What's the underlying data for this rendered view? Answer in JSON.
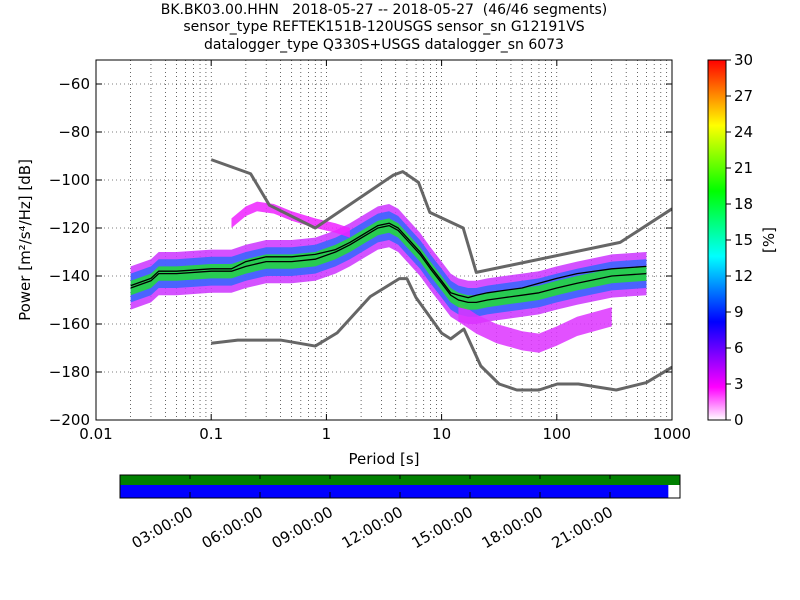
{
  "chart_data": [
    {
      "type": "heatmap",
      "title_lines": [
        "BK.BK03.00.HHN   2018-05-27 -- 2018-05-27  (46/46 segments)",
        "sensor_type REFTEK151B-120USGS sensor_sn G12191VS",
        "datalogger_type Q330S+USGS datalogger_sn 6073"
      ],
      "xlabel": "Period [s]",
      "ylabel": "Power [m²/s⁴/Hz] [dB]",
      "xscale": "log",
      "xlim": [
        0.01,
        1000
      ],
      "ylim": [
        -200,
        -50
      ],
      "xticks": [
        0.01,
        0.1,
        1,
        10,
        100,
        1000
      ],
      "xtick_labels": [
        "0.01",
        "0.1",
        "1",
        "10",
        "100",
        "1000"
      ],
      "yticks": [
        -200,
        -180,
        -160,
        -140,
        -120,
        -100,
        -80,
        -60
      ],
      "ytick_labels": [
        "−200",
        "−180",
        "−160",
        "−140",
        "−120",
        "−100",
        "−80",
        "−60"
      ],
      "grid": "dotted",
      "colorbar": {
        "label": "[%]",
        "range": [
          0,
          30
        ],
        "ticks": [
          0,
          3,
          6,
          9,
          12,
          15,
          18,
          21,
          24,
          27,
          30
        ],
        "colormap": [
          "#ffffff",
          "#ff00ff",
          "#8000ff",
          "#0000ff",
          "#0080ff",
          "#00ffff",
          "#00ff80",
          "#00ff00",
          "#80ff00",
          "#ffff00",
          "#ff8000",
          "#ff0000"
        ]
      },
      "series": [
        {
          "role": "high-noise-model",
          "color": "#666666",
          "x": [
            0.1,
            0.22,
            0.32,
            0.8,
            3.8,
            4.6,
            6.3,
            7.9,
            15.4,
            20,
            354.8,
            1000
          ],
          "y": [
            -91.5,
            -97.4,
            -110.5,
            -120,
            -98,
            -96.5,
            -101,
            -113.5,
            -120,
            -138.5,
            -126,
            -112
          ]
        },
        {
          "role": "low-noise-model",
          "color": "#666666",
          "x": [
            0.1,
            0.17,
            0.4,
            0.8,
            1.24,
            2.4,
            4.3,
            5,
            6,
            10,
            12,
            15.6,
            21.9,
            31.6,
            45,
            70,
            101,
            154,
            328,
            600,
            1000
          ],
          "y": [
            -168,
            -166.7,
            -166.7,
            -169.2,
            -163.7,
            -148.6,
            -141.1,
            -141.1,
            -149,
            -163.8,
            -166.2,
            -162.1,
            -177.5,
            -185,
            -187.5,
            -187.5,
            -185,
            -185,
            -187.5,
            -184.4,
            -178
          ]
        },
        {
          "role": "mode",
          "color": "#000000",
          "x": [
            0.02,
            0.03,
            0.035,
            0.05,
            0.1,
            0.15,
            0.2,
            0.3,
            0.5,
            0.8,
            1.2,
            1.6,
            2.2,
            2.8,
            3.5,
            4.2,
            5,
            6.5,
            8,
            10,
            12,
            14,
            17,
            20,
            25,
            35,
            50,
            70,
            100,
            150,
            300,
            600
          ],
          "y": [
            -145,
            -142,
            -139,
            -139,
            -138,
            -138,
            -136,
            -134,
            -134,
            -133,
            -130,
            -127,
            -123,
            -120,
            -119,
            -121,
            -125,
            -131,
            -137,
            -143,
            -148,
            -150,
            -151,
            -151,
            -150,
            -149,
            -148,
            -147,
            -145,
            -143,
            -140,
            -139
          ]
        },
        {
          "role": "mean",
          "color": "#000000",
          "x": [
            0.02,
            0.03,
            0.035,
            0.05,
            0.1,
            0.15,
            0.2,
            0.3,
            0.5,
            0.8,
            1.2,
            1.6,
            2.2,
            2.8,
            3.5,
            4.2,
            5,
            6.5,
            8,
            10,
            12,
            14,
            17,
            20,
            25,
            35,
            50,
            70,
            100,
            150,
            300,
            600
          ],
          "y": [
            -144,
            -141,
            -138,
            -138,
            -137,
            -137,
            -134,
            -132,
            -132,
            -131,
            -129,
            -126,
            -122,
            -119,
            -118,
            -120,
            -124,
            -130,
            -136,
            -142,
            -147,
            -148,
            -149,
            -148,
            -147,
            -146,
            -145,
            -143,
            -141,
            -139,
            -137,
            -136
          ]
        }
      ],
      "pdf_bands": [
        {
          "x": [
            0.02,
            0.03,
            0.035,
            0.05,
            0.1,
            0.15,
            0.2,
            0.3,
            0.5,
            0.8,
            1.2,
            1.6,
            2.2,
            2.8,
            3.5,
            4.2,
            5,
            6.5,
            8,
            10,
            12,
            14,
            17,
            20,
            25,
            35,
            50,
            70,
            100,
            150,
            300,
            600
          ],
          "y": [
            -145,
            -142,
            -139,
            -139,
            -138,
            -138,
            -136,
            -134,
            -134,
            -133,
            -130,
            -127,
            -123,
            -120,
            -119,
            -121,
            -125,
            -131,
            -137,
            -143,
            -148,
            -150,
            -151,
            -151,
            -150,
            -149,
            -148,
            -147,
            -145,
            -143,
            -140,
            -139
          ],
          "half_width_db": 3,
          "color": "#22dd33",
          "percent": 18
        },
        {
          "x": [
            0.02,
            0.03,
            0.035,
            0.05,
            0.1,
            0.15,
            0.2,
            0.3,
            0.5,
            0.8,
            1.2,
            1.6,
            2.2,
            2.8,
            3.5,
            4.2,
            5,
            6.5,
            8,
            10,
            12,
            14,
            17,
            20,
            25,
            35,
            50,
            70,
            100,
            150,
            300,
            600
          ],
          "y": [
            -145,
            -142,
            -139,
            -139,
            -138,
            -138,
            -136,
            -134,
            -134,
            -133,
            -130,
            -127,
            -123,
            -120,
            -119,
            -121,
            -125,
            -131,
            -137,
            -143,
            -148,
            -150,
            -151,
            -151,
            -150,
            -149,
            -148,
            -147,
            -145,
            -143,
            -140,
            -139
          ],
          "half_width_db": 6,
          "color": "#3366ff",
          "percent": 7
        },
        {
          "x": [
            0.02,
            0.03,
            0.035,
            0.05,
            0.1,
            0.15,
            0.2,
            0.3,
            0.5,
            0.8,
            1.2,
            1.6,
            2.2,
            2.8,
            3.5,
            4.2,
            5,
            6.5,
            8,
            10,
            12,
            14,
            17,
            20,
            25,
            35,
            50,
            70,
            100,
            150,
            300,
            600
          ],
          "y": [
            -145,
            -142,
            -139,
            -139,
            -138,
            -138,
            -136,
            -134,
            -134,
            -133,
            -130,
            -127,
            -123,
            -120,
            -119,
            -121,
            -125,
            -131,
            -137,
            -143,
            -148,
            -150,
            -151,
            -151,
            -150,
            -149,
            -148,
            -147,
            -145,
            -143,
            -140,
            -139
          ],
          "half_width_db": 9,
          "color": "#cc33ff",
          "percent": 3
        },
        {
          "x": [
            0.15,
            0.2,
            0.25,
            0.35,
            0.5,
            0.8,
            1.2,
            1.6
          ],
          "y": [
            -118,
            -113,
            -111,
            -112,
            -115,
            -118,
            -120,
            -122
          ],
          "half_width_db": 2,
          "color": "#ee22ff",
          "percent": 2
        },
        {
          "x": [
            14,
            20,
            30,
            50,
            70,
            100,
            150,
            300
          ],
          "y": [
            -155,
            -160,
            -164,
            -167,
            -168,
            -165,
            -161,
            -157
          ],
          "half_width_db": 4,
          "color": "#dd33ff",
          "percent": 2
        }
      ]
    },
    {
      "type": "timeline",
      "xlim_hours": [
        0,
        24
      ],
      "tick_hours": [
        3,
        6,
        9,
        12,
        15,
        18,
        21
      ],
      "tick_labels": [
        "03:00:00",
        "06:00:00",
        "09:00:00",
        "12:00:00",
        "15:00:00",
        "18:00:00",
        "21:00:00"
      ],
      "data_coverage": [
        [
          0,
          24
        ]
      ],
      "data_color": "#008000",
      "psd_segments_coverage": [
        [
          0,
          23.5
        ]
      ],
      "psd_color": "#0000ff"
    }
  ]
}
